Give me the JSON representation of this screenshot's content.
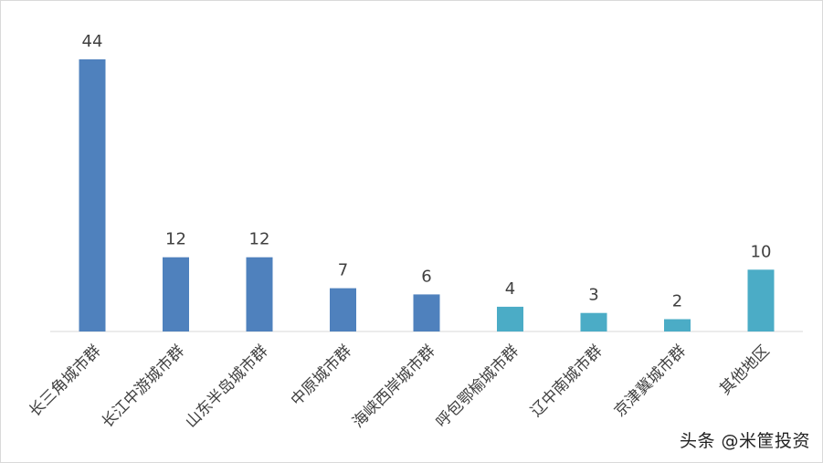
{
  "chart_data": {
    "type": "bar",
    "categories": [
      "长三角城市群",
      "长江中游城市群",
      "山东半岛城市群",
      "中原城市群",
      "海峡西岸城市群",
      "呼包鄂榆城市群",
      "辽中南城市群",
      "京津冀城市群",
      "其他地区"
    ],
    "values": [
      44,
      12,
      12,
      7,
      6,
      4,
      3,
      2,
      10
    ],
    "bar_colors": [
      "#4f81bd",
      "#4f81bd",
      "#4f81bd",
      "#4f81bd",
      "#4f81bd",
      "#4bacc6",
      "#4bacc6",
      "#4bacc6",
      "#4bacc6"
    ],
    "title": "",
    "xlabel": "",
    "ylabel": "",
    "ylim": [
      0,
      44
    ],
    "grid": false,
    "legend": "none",
    "data_labels": true
  },
  "watermark": "头条 @米筐投资"
}
